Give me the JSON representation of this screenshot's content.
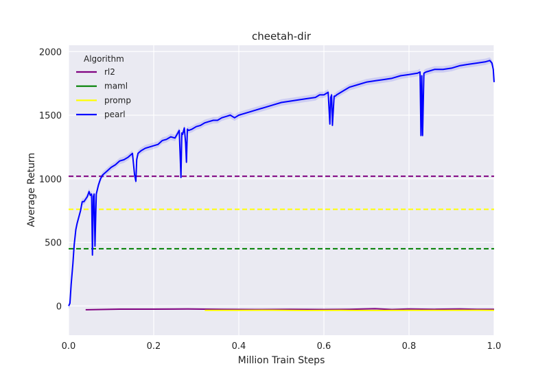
{
  "chart_data": {
    "type": "line",
    "title": "cheetah-dir",
    "xlabel": "Million Train Steps",
    "ylabel": "Average Return",
    "xlim": [
      0.0,
      1.0
    ],
    "ylim": [
      -230,
      2050
    ],
    "xticks": [
      0.0,
      0.2,
      0.4,
      0.6,
      0.8,
      1.0
    ],
    "xtick_labels": [
      "0.0",
      "0.2",
      "0.4",
      "0.6",
      "0.8",
      "1.0"
    ],
    "yticks": [
      0,
      500,
      1000,
      1500,
      2000
    ],
    "ytick_labels": [
      "0",
      "500",
      "1000",
      "1500",
      "2000"
    ],
    "grid": true,
    "legend": {
      "title": "Algorithm",
      "position": "top-left"
    },
    "colors": {
      "background": "#EAEAF2",
      "grid": "#FFFFFF",
      "rl2": "#800080",
      "maml": "#008000",
      "promp": "#FFFF00",
      "pearl": "#0000FF"
    },
    "hlines": [
      {
        "name": "rl2",
        "y": 1020,
        "style": "dashed"
      },
      {
        "name": "maml",
        "y": 450,
        "style": "dashed"
      },
      {
        "name": "promp",
        "y": 760,
        "style": "dashed"
      }
    ],
    "series": [
      {
        "name": "rl2",
        "x": [
          0.04,
          0.12,
          0.2,
          0.28,
          0.36,
          0.44,
          0.52,
          0.6,
          0.66,
          0.72,
          0.76,
          0.8,
          0.86,
          0.92,
          0.96,
          1.0
        ],
        "y": [
          -30,
          -25,
          -25,
          -24,
          -27,
          -28,
          -27,
          -28,
          -27,
          -22,
          -28,
          -24,
          -26,
          -24,
          -26,
          -26
        ]
      },
      {
        "name": "promp",
        "x": [
          0.32,
          0.4,
          0.48,
          0.56,
          0.64,
          0.72,
          0.8,
          0.88,
          0.96,
          1.0
        ],
        "y": [
          -35,
          -35,
          -34,
          -36,
          -35,
          -36,
          -35,
          -35,
          -34,
          -35
        ]
      },
      {
        "name": "pearl",
        "x": [
          0.0,
          0.003,
          0.006,
          0.01,
          0.013,
          0.017,
          0.02,
          0.024,
          0.028,
          0.032,
          0.036,
          0.04,
          0.044,
          0.048,
          0.051,
          0.054,
          0.056,
          0.058,
          0.06,
          0.062,
          0.065,
          0.07,
          0.075,
          0.08,
          0.09,
          0.1,
          0.11,
          0.12,
          0.13,
          0.14,
          0.15,
          0.155,
          0.158,
          0.16,
          0.163,
          0.17,
          0.18,
          0.19,
          0.2,
          0.21,
          0.22,
          0.23,
          0.24,
          0.25,
          0.26,
          0.264,
          0.266,
          0.268,
          0.272,
          0.275,
          0.277,
          0.279,
          0.282,
          0.29,
          0.3,
          0.31,
          0.32,
          0.33,
          0.34,
          0.35,
          0.36,
          0.37,
          0.38,
          0.39,
          0.4,
          0.42,
          0.44,
          0.46,
          0.48,
          0.5,
          0.52,
          0.54,
          0.56,
          0.58,
          0.59,
          0.6,
          0.61,
          0.614,
          0.616,
          0.618,
          0.62,
          0.624,
          0.627,
          0.63,
          0.64,
          0.65,
          0.66,
          0.68,
          0.7,
          0.72,
          0.74,
          0.76,
          0.78,
          0.8,
          0.82,
          0.826,
          0.828,
          0.83,
          0.832,
          0.835,
          0.84,
          0.86,
          0.88,
          0.9,
          0.92,
          0.94,
          0.96,
          0.98,
          0.99,
          0.995,
          0.998,
          1.0
        ],
        "y": [
          0,
          20,
          170,
          330,
          480,
          600,
          650,
          700,
          750,
          820,
          820,
          840,
          860,
          900,
          870,
          880,
          400,
          860,
          880,
          470,
          880,
          950,
          1000,
          1030,
          1060,
          1090,
          1110,
          1140,
          1150,
          1170,
          1200,
          1030,
          980,
          1150,
          1200,
          1220,
          1240,
          1250,
          1260,
          1270,
          1300,
          1310,
          1330,
          1320,
          1380,
          1010,
          1360,
          1350,
          1400,
          1280,
          1130,
          1390,
          1380,
          1390,
          1410,
          1420,
          1440,
          1450,
          1460,
          1460,
          1480,
          1490,
          1500,
          1480,
          1500,
          1520,
          1540,
          1560,
          1580,
          1600,
          1610,
          1620,
          1630,
          1640,
          1660,
          1660,
          1680,
          1430,
          1640,
          1660,
          1420,
          1650,
          1650,
          1660,
          1680,
          1700,
          1720,
          1740,
          1760,
          1770,
          1780,
          1790,
          1810,
          1820,
          1830,
          1840,
          1340,
          1810,
          1340,
          1830,
          1840,
          1860,
          1860,
          1870,
          1890,
          1900,
          1910,
          1920,
          1930,
          1910,
          1860,
          1760
        ]
      }
    ]
  }
}
